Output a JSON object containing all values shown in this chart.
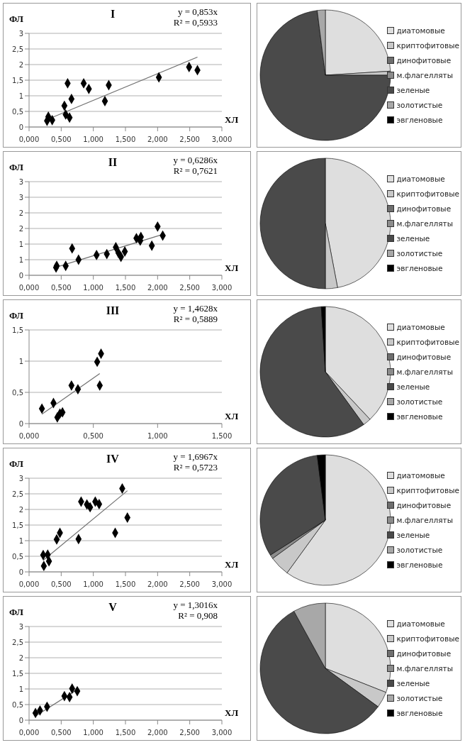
{
  "chart_data": [
    {
      "type": "scatter",
      "title": "I",
      "xlabel": "ХЛ",
      "ylabel": "ФЛ",
      "annotations": [
        "y = 0,853x",
        "R² = 0,5933"
      ],
      "marker": "diamond",
      "grid": "y",
      "xlim": [
        0,
        3
      ],
      "ylim": [
        0,
        3
      ],
      "xticks": [
        {
          "value": 0,
          "label": "0,000"
        },
        {
          "value": 0.5,
          "label": "0,500"
        },
        {
          "value": 1,
          "label": "1,000"
        },
        {
          "value": 1.5,
          "label": "1,500"
        },
        {
          "value": 2,
          "label": "2,000"
        },
        {
          "value": 2.5,
          "label": "2,500"
        },
        {
          "value": 3,
          "label": "3,000"
        }
      ],
      "yticks": [
        0,
        {
          "value": 0.5,
          "label": "0,5"
        },
        1,
        {
          "value": 1.5,
          "label": "1,5"
        },
        2,
        {
          "value": 2.5,
          "label": "2,5"
        },
        3
      ],
      "series": [
        {
          "type": "scatter",
          "color": "#000000",
          "x": [
            0.28,
            0.3,
            0.36,
            0.55,
            0.57,
            0.6,
            0.63,
            0.66,
            0.85,
            0.93,
            1.18,
            1.24,
            2.02,
            2.49,
            2.62
          ],
          "values": [
            0.2,
            0.33,
            0.22,
            0.68,
            0.4,
            1.4,
            0.3,
            0.9,
            1.4,
            1.22,
            0.83,
            1.34,
            1.59,
            1.92,
            1.82
          ]
        },
        {
          "type": "line",
          "marker": "none",
          "color": "#707070",
          "x": [
            0.28,
            2.62
          ],
          "values": [
            0.24,
            2.24
          ]
        }
      ]
    },
    {
      "type": "pie",
      "legend": "right",
      "categories": [
        "диатомовые",
        "криптофитовые",
        "динофитовые",
        "м.флагелляты",
        "зеленые",
        "золотистые",
        "эвгленовые"
      ],
      "values": [
        24,
        1,
        0,
        0,
        73,
        2,
        0
      ],
      "colors": [
        "#dedede",
        "#c8c8c8",
        "#6e6e6e",
        "#8c8c8c",
        "#4a4a4a",
        "#a8a8a8",
        "#000000"
      ]
    },
    {
      "type": "scatter",
      "title": "II",
      "xlabel": "ХЛ",
      "ylabel": "ФЛ",
      "annotations": [
        "y = 0,6286x",
        "R² = 0,7621"
      ],
      "marker": "diamond",
      "grid": "y",
      "xlim": [
        0,
        3
      ],
      "ylim": [
        0,
        3
      ],
      "xticks": [
        {
          "value": 0,
          "label": "0,000"
        },
        {
          "value": 0.5,
          "label": "0,500"
        },
        {
          "value": 1,
          "label": "1,000"
        },
        {
          "value": 1.5,
          "label": "1,500"
        },
        {
          "value": 2,
          "label": "2,000"
        },
        {
          "value": 2.5,
          "label": "2,500"
        },
        {
          "value": 3,
          "label": "3,000"
        }
      ],
      "yticks": [
        0,
        {
          "value": 0.5,
          "label": "1"
        },
        1,
        {
          "value": 1.5,
          "label": "2"
        },
        2,
        {
          "value": 2.5,
          "label": "3"
        },
        3
      ],
      "series": [
        {
          "type": "scatter",
          "color": "#000000",
          "x": [
            0.42,
            0.43,
            0.57,
            0.67,
            0.77,
            1.05,
            1.21,
            1.35,
            1.39,
            1.43,
            1.49,
            1.67,
            1.73,
            1.74,
            1.91,
            2.0,
            2.08
          ],
          "values": [
            0.25,
            0.3,
            0.3,
            0.86,
            0.5,
            0.65,
            0.68,
            0.9,
            0.72,
            0.59,
            0.76,
            1.19,
            1.11,
            1.23,
            0.95,
            1.56,
            1.27
          ]
        },
        {
          "type": "line",
          "marker": "none",
          "color": "#707070",
          "x": [
            0.42,
            2.08
          ],
          "values": [
            0.26,
            1.31
          ]
        }
      ]
    },
    {
      "type": "pie",
      "legend": "right",
      "categories": [
        "диатомовые",
        "криптофитовые",
        "динофитовые",
        "м.флагелляты",
        "зеленые",
        "золотистые",
        "эвгленовые"
      ],
      "values": [
        47,
        3,
        0,
        0,
        50,
        0,
        0
      ],
      "colors": [
        "#dedede",
        "#c8c8c8",
        "#6e6e6e",
        "#8c8c8c",
        "#4a4a4a",
        "#a8a8a8",
        "#000000"
      ]
    },
    {
      "type": "scatter",
      "title": "III",
      "xlabel": "ХЛ",
      "ylabel": "ФЛ",
      "annotations": [
        "y = 1,4628x",
        "R² = 0,5889"
      ],
      "marker": "diamond",
      "grid": "y",
      "xlim": [
        0,
        1.5
      ],
      "ylim": [
        0,
        1.5
      ],
      "xticks": [
        {
          "value": 0,
          "label": "0,000"
        },
        {
          "value": 0.5,
          "label": "0,500"
        },
        {
          "value": 1,
          "label": "1,000"
        },
        {
          "value": 1.5,
          "label": "1,500"
        }
      ],
      "yticks": [
        0,
        {
          "value": 0.5,
          "label": "0,5"
        },
        1,
        {
          "value": 1.5,
          "label": "1,5"
        }
      ],
      "series": [
        {
          "type": "scatter",
          "color": "#000000",
          "x": [
            0.1,
            0.19,
            0.22,
            0.24,
            0.26,
            0.33,
            0.38,
            0.53,
            0.56,
            0.55
          ],
          "values": [
            0.24,
            0.33,
            0.1,
            0.16,
            0.18,
            0.61,
            0.55,
            0.99,
            1.12,
            0.61
          ]
        },
        {
          "type": "line",
          "marker": "none",
          "color": "#707070",
          "x": [
            0.1,
            0.55
          ],
          "values": [
            0.15,
            0.8
          ]
        }
      ]
    },
    {
      "type": "pie",
      "legend": "right",
      "categories": [
        "диатомовые",
        "криптофитовые",
        "динофитовые",
        "м.флагелляты",
        "зеленые",
        "золотистые",
        "эвгленовые"
      ],
      "values": [
        38,
        2,
        0,
        0,
        59,
        0,
        1
      ],
      "colors": [
        "#dedede",
        "#c8c8c8",
        "#6e6e6e",
        "#8c8c8c",
        "#4a4a4a",
        "#a8a8a8",
        "#000000"
      ]
    },
    {
      "type": "scatter",
      "title": "IV",
      "xlabel": "ХЛ",
      "ylabel": "ФЛ",
      "annotations": [
        "y = 1,6967x",
        "R² = 0,5723"
      ],
      "marker": "diamond",
      "grid": "y",
      "xlim": [
        0,
        3
      ],
      "ylim": [
        0,
        3
      ],
      "xticks": [
        {
          "value": 0,
          "label": "0,000"
        },
        {
          "value": 0.5,
          "label": "0,500"
        },
        {
          "value": 1,
          "label": "1,000"
        },
        {
          "value": 1.5,
          "label": "1,500"
        },
        {
          "value": 2,
          "label": "2,000"
        },
        {
          "value": 2.5,
          "label": "2,500"
        },
        {
          "value": 3,
          "label": "3,000"
        }
      ],
      "yticks": [
        0,
        {
          "value": 0.5,
          "label": "0,5"
        },
        1,
        {
          "value": 1.5,
          "label": "1,5"
        },
        2,
        {
          "value": 2.5,
          "label": "2,5"
        },
        3
      ],
      "series": [
        {
          "type": "scatter",
          "color": "#000000",
          "x": [
            0.22,
            0.23,
            0.29,
            0.31,
            0.43,
            0.48,
            0.77,
            0.81,
            0.9,
            0.95,
            1.03,
            1.09,
            1.34,
            1.45,
            1.53
          ],
          "values": [
            0.54,
            0.19,
            0.55,
            0.34,
            1.04,
            1.25,
            1.05,
            2.25,
            2.16,
            2.07,
            2.25,
            2.17,
            1.25,
            2.67,
            1.74
          ]
        },
        {
          "type": "line",
          "marker": "none",
          "color": "#707070",
          "x": [
            0.22,
            1.53
          ],
          "values": [
            0.37,
            2.6
          ]
        }
      ]
    },
    {
      "type": "pie",
      "legend": "right",
      "categories": [
        "диатомовые",
        "криптофитовые",
        "динофитовые",
        "м.флагелляты",
        "зеленые",
        "золотистые",
        "эвгленовые"
      ],
      "values": [
        60,
        5,
        0,
        1,
        32,
        0,
        2
      ],
      "colors": [
        "#dedede",
        "#c8c8c8",
        "#6e6e6e",
        "#8c8c8c",
        "#4a4a4a",
        "#a8a8a8",
        "#000000"
      ]
    },
    {
      "type": "scatter",
      "title": "V",
      "xlabel": "ХЛ",
      "ylabel": "ФЛ",
      "annotations": [
        "y = 1,3016x",
        "R² = 0,908"
      ],
      "marker": "diamond",
      "grid": "y",
      "xlim": [
        0,
        3
      ],
      "ylim": [
        0,
        3
      ],
      "xticks": [
        {
          "value": 0,
          "label": "0,000"
        },
        {
          "value": 0.5,
          "label": "0,500"
        },
        {
          "value": 1,
          "label": "1,000"
        },
        {
          "value": 1.5,
          "label": "1,500"
        },
        {
          "value": 2,
          "label": "2,000"
        },
        {
          "value": 2.5,
          "label": "2,500"
        },
        {
          "value": 3,
          "label": "3,000"
        }
      ],
      "yticks": [
        0,
        {
          "value": 0.5,
          "label": "0,5"
        },
        1,
        {
          "value": 1.5,
          "label": "1,5"
        },
        2,
        {
          "value": 2.5,
          "label": "2,5"
        },
        3
      ],
      "series": [
        {
          "type": "scatter",
          "color": "#000000",
          "x": [
            0.1,
            0.17,
            0.28,
            0.55,
            0.63,
            0.67,
            0.75
          ],
          "values": [
            0.23,
            0.31,
            0.43,
            0.77,
            0.74,
            1.01,
            0.93
          ]
        },
        {
          "type": "line",
          "marker": "none",
          "color": "#707070",
          "x": [
            0.1,
            0.75
          ],
          "values": [
            0.13,
            0.98
          ]
        }
      ]
    },
    {
      "type": "pie",
      "legend": "right",
      "categories": [
        "диатомовые",
        "криптофитовые",
        "динофитовые",
        "м.флагелляты",
        "зеленые",
        "золотистые",
        "эвгленовые"
      ],
      "values": [
        31,
        4,
        0,
        0,
        57,
        8,
        0
      ],
      "colors": [
        "#dedede",
        "#c8c8c8",
        "#6e6e6e",
        "#8c8c8c",
        "#4a4a4a",
        "#a8a8a8",
        "#000000"
      ]
    }
  ]
}
